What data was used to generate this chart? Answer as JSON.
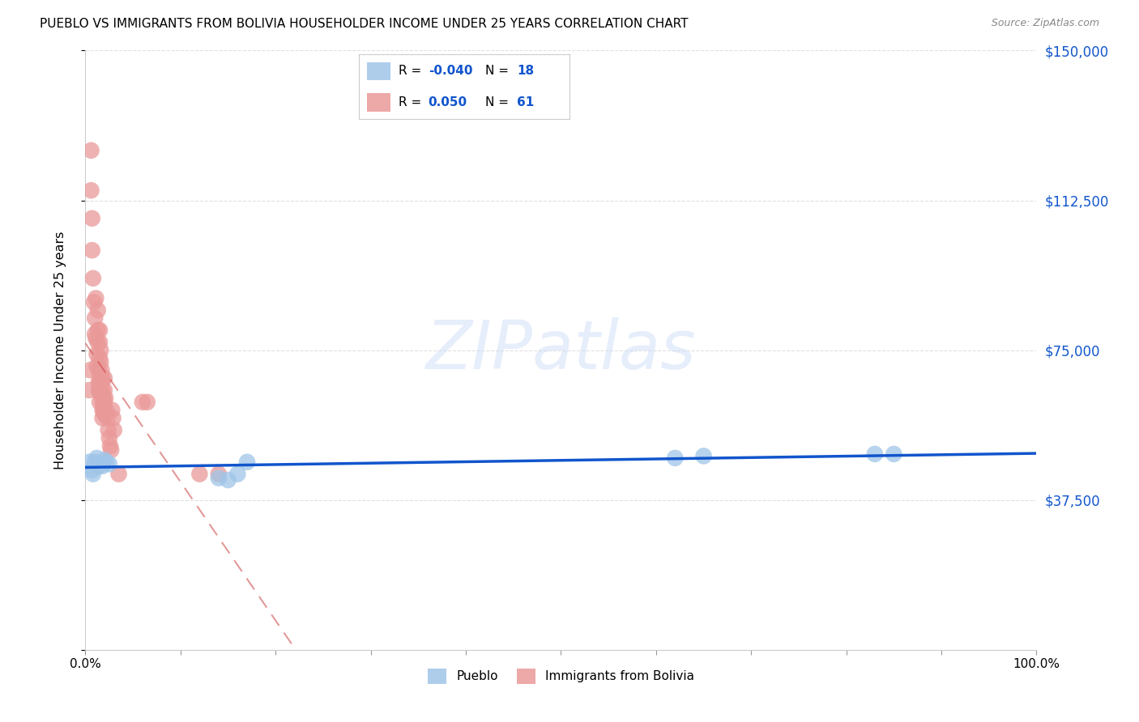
{
  "title": "PUEBLO VS IMMIGRANTS FROM BOLIVIA HOUSEHOLDER INCOME UNDER 25 YEARS CORRELATION CHART",
  "source": "Source: ZipAtlas.com",
  "ylabel": "Householder Income Under 25 years",
  "xlim": [
    0,
    1.0
  ],
  "ylim": [
    0,
    150000
  ],
  "yticks": [
    0,
    37500,
    75000,
    112500,
    150000
  ],
  "ytick_labels": [
    "",
    "$37,500",
    "$75,000",
    "$112,500",
    "$150,000"
  ],
  "xtick_vals": [
    0.0,
    0.1,
    0.2,
    0.3,
    0.4,
    0.5,
    0.6,
    0.7,
    0.8,
    0.9,
    1.0
  ],
  "xtick_labels": [
    "0.0%",
    "",
    "",
    "",
    "",
    "",
    "",
    "",
    "",
    "",
    "100.0%"
  ],
  "blue_color": "#9fc5e8",
  "pink_color": "#ea9999",
  "blue_line_color": "#1155cc",
  "pink_line_color": "#cc4444",
  "blue_R": -0.04,
  "blue_N": 18,
  "pink_R": 0.05,
  "pink_N": 61,
  "legend_label_blue": "Pueblo",
  "legend_label_pink": "Immigrants from Bolivia",
  "blue_scatter_x": [
    0.004,
    0.007,
    0.008,
    0.01,
    0.012,
    0.014,
    0.018,
    0.02,
    0.022,
    0.025,
    0.14,
    0.15,
    0.16,
    0.17,
    0.62,
    0.65,
    0.83,
    0.85
  ],
  "blue_scatter_y": [
    47000,
    45000,
    44000,
    47000,
    48000,
    46000,
    46000,
    47500,
    47000,
    46500,
    43000,
    42500,
    44000,
    47000,
    48000,
    48500,
    49000,
    49000
  ],
  "pink_scatter_x": [
    0.004,
    0.005,
    0.006,
    0.006,
    0.007,
    0.007,
    0.008,
    0.009,
    0.01,
    0.01,
    0.011,
    0.011,
    0.012,
    0.012,
    0.013,
    0.013,
    0.013,
    0.014,
    0.014,
    0.014,
    0.015,
    0.015,
    0.015,
    0.015,
    0.015,
    0.015,
    0.015,
    0.016,
    0.016,
    0.016,
    0.016,
    0.017,
    0.017,
    0.017,
    0.018,
    0.018,
    0.018,
    0.018,
    0.018,
    0.019,
    0.019,
    0.02,
    0.02,
    0.02,
    0.02,
    0.021,
    0.021,
    0.022,
    0.023,
    0.024,
    0.025,
    0.026,
    0.027,
    0.028,
    0.029,
    0.03,
    0.035,
    0.06,
    0.065,
    0.12,
    0.14
  ],
  "pink_scatter_y": [
    65000,
    70000,
    125000,
    115000,
    108000,
    100000,
    93000,
    87000,
    83000,
    79000,
    88000,
    78000,
    74000,
    71000,
    85000,
    80000,
    77000,
    70000,
    67000,
    65000,
    80000,
    77000,
    73000,
    69000,
    67000,
    65000,
    62000,
    75000,
    72000,
    68000,
    64000,
    70000,
    67000,
    64000,
    68000,
    65000,
    62000,
    60000,
    58000,
    63000,
    60000,
    68000,
    65000,
    62000,
    59000,
    63000,
    59000,
    60000,
    58000,
    55000,
    53000,
    51000,
    50000,
    60000,
    58000,
    55000,
    44000,
    62000,
    62000,
    44000,
    44000
  ],
  "watermark_text": "ZIPatlas",
  "watermark_color": "#c9daf8",
  "watermark_alpha": 0.45,
  "watermark_fontsize": 60
}
